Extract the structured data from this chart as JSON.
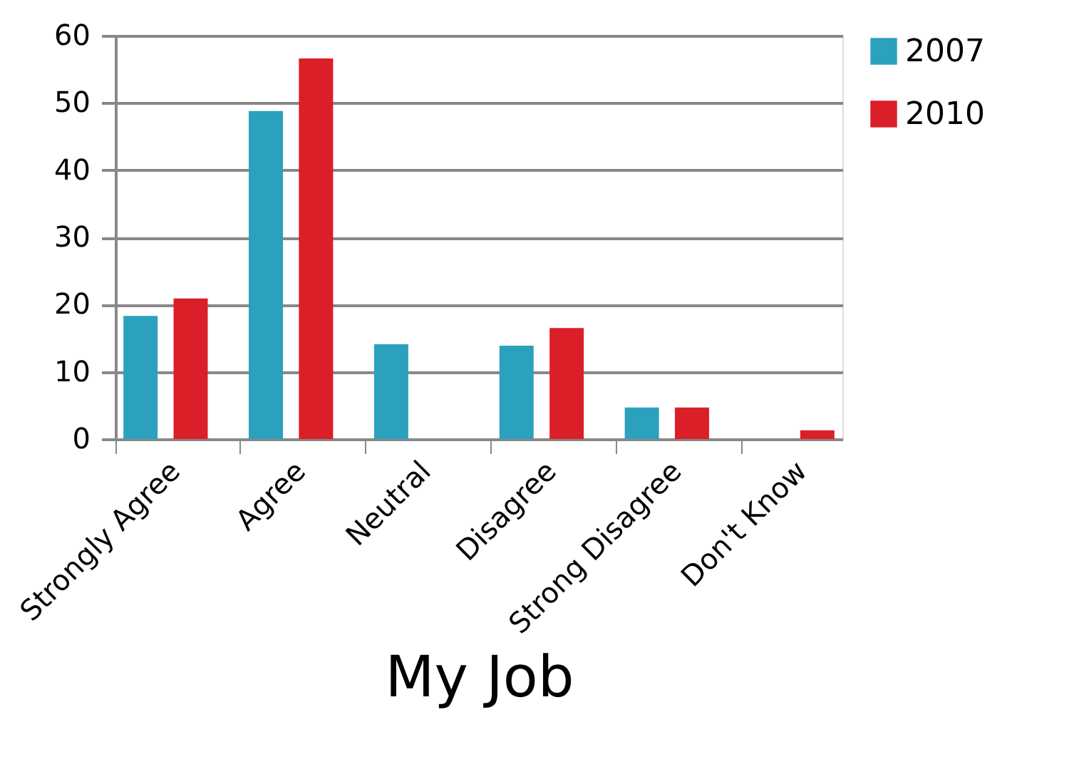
{
  "chart_data": {
    "type": "bar",
    "xlabel": "My Job",
    "categories": [
      "Strongly Agree",
      "Agree",
      "Neutral",
      "Disagree",
      "Strong Disagree",
      "Don't Know"
    ],
    "series": [
      {
        "name": "2007",
        "color": "#2ca1be",
        "values": [
          18.3,
          48.8,
          14.1,
          13.9,
          4.7,
          null
        ]
      },
      {
        "name": "2010",
        "color": "#db1f29",
        "values": [
          20.9,
          56.6,
          null,
          16.5,
          4.7,
          1.3
        ]
      }
    ],
    "ylim": [
      0,
      60
    ],
    "yticks": [
      0,
      10,
      20,
      30,
      40,
      50,
      60
    ],
    "grid": "y",
    "legend": "right"
  }
}
